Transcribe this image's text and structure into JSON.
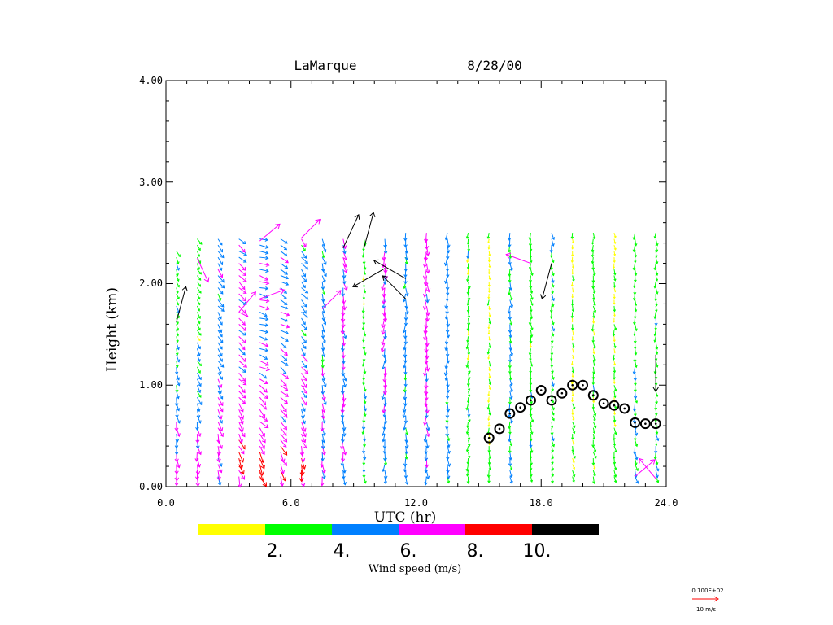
{
  "chart_data": {
    "type": "wind-profiler-vector",
    "title_station": "LaMarque",
    "title_date": "8/28/00",
    "xlabel": "UTC (hr)",
    "ylabel": "Height (km)",
    "xlim": [
      0,
      24
    ],
    "ylim": [
      0,
      4
    ],
    "xticks": [
      0,
      6,
      12,
      18,
      24
    ],
    "xtick_labels": [
      "0.0",
      "6.0",
      "12.0",
      "18.0",
      "24.0"
    ],
    "yticks": [
      0,
      1,
      2,
      3,
      4
    ],
    "ytick_labels": [
      "0.00",
      "1.00",
      "2.00",
      "3.00",
      "4.00"
    ],
    "colorbar": {
      "label": "Wind speed (m/s)",
      "colors": [
        "#ffff00",
        "#00ff00",
        "#0080ff",
        "#ff00ff",
        "#ff0000",
        "#000000"
      ],
      "bounds": [
        0,
        2,
        4,
        6,
        8,
        10,
        12
      ],
      "tick_labels": [
        "2.",
        "4.",
        "6.",
        "8.",
        "10."
      ]
    },
    "reference_vector": {
      "value_label": "0.100E+02",
      "unit_label": "10 m/s",
      "color": "#ff0000"
    },
    "profile_hours": [
      0.5,
      1.5,
      2.5,
      3.5,
      4.5,
      5.5,
      6.5,
      7.5,
      8.5,
      9.5,
      10.5,
      11.5,
      12.5,
      13.5,
      14.5,
      15.5,
      16.5,
      17.5,
      18.5,
      19.5,
      20.5,
      21.5,
      22.5,
      23.5
    ],
    "profile_top_km": [
      2.35,
      2.45,
      2.45,
      2.45,
      2.45,
      2.45,
      2.45,
      2.45,
      2.45,
      2.45,
      2.45,
      2.5,
      2.5,
      2.5,
      2.5,
      2.5,
      2.5,
      2.5,
      2.5,
      2.5,
      2.5,
      2.5,
      2.5,
      2.5
    ],
    "level_spacing_km": 0.06,
    "profiles": [
      {
        "h": 0.5,
        "low_dir": 175,
        "up_dir": 160,
        "low_speed": 6.8,
        "up_speed": 3.5
      },
      {
        "h": 1.5,
        "low_dir": 178,
        "up_dir": 150,
        "low_speed": 7.0,
        "up_speed": 3.0
      },
      {
        "h": 2.5,
        "low_dir": 172,
        "up_dir": 145,
        "low_speed": 7.2,
        "up_speed": 5.0
      },
      {
        "h": 3.5,
        "low_dir": 165,
        "up_dir": 130,
        "low_speed": 7.5,
        "up_speed": 6.5
      },
      {
        "h": 4.5,
        "low_dir": 160,
        "up_dir": 110,
        "low_speed": 8.2,
        "up_speed": 6.0
      },
      {
        "h": 5.5,
        "low_dir": 160,
        "up_dir": 120,
        "low_speed": 7.8,
        "up_speed": 5.5
      },
      {
        "h": 6.5,
        "low_dir": 170,
        "up_dir": 140,
        "low_speed": 8.5,
        "up_speed": 5.0
      },
      {
        "h": 7.5,
        "low_dir": 175,
        "up_dir": 160,
        "low_speed": 6.8,
        "up_speed": 4.5
      },
      {
        "h": 8.5,
        "low_dir": 178,
        "up_dir": 170,
        "low_speed": 5.5,
        "up_speed": 6.5
      },
      {
        "h": 9.5,
        "low_dir": 180,
        "up_dir": 180,
        "low_speed": 4.5,
        "up_speed": 3.0
      },
      {
        "h": 10.5,
        "low_dir": 182,
        "up_dir": 185,
        "low_speed": 4.5,
        "up_speed": 6.5
      },
      {
        "h": 11.5,
        "low_dir": 180,
        "up_dir": 180,
        "low_speed": 4.8,
        "up_speed": 4.8
      },
      {
        "h": 12.5,
        "low_dir": 180,
        "up_dir": 180,
        "low_speed": 5.0,
        "up_speed": 7.0
      },
      {
        "h": 13.5,
        "low_dir": 178,
        "up_dir": 180,
        "low_speed": 4.5,
        "up_speed": 5.0
      },
      {
        "h": 14.5,
        "low_dir": 178,
        "up_dir": 180,
        "low_speed": 3.0,
        "up_speed": 3.0
      },
      {
        "h": 15.5,
        "low_dir": 175,
        "up_dir": 180,
        "low_speed": 2.8,
        "up_speed": 1.5
      },
      {
        "h": 16.5,
        "low_dir": 170,
        "up_dir": 175,
        "low_speed": 3.5,
        "up_speed": 4.5
      },
      {
        "h": 17.5,
        "low_dir": 168,
        "up_dir": 175,
        "low_speed": 3.5,
        "up_speed": 3.0
      },
      {
        "h": 18.5,
        "low_dir": 165,
        "up_dir": 170,
        "low_speed": 3.0,
        "up_speed": 3.5
      },
      {
        "h": 19.5,
        "low_dir": 165,
        "up_dir": 175,
        "low_speed": 3.0,
        "up_speed": 1.5
      },
      {
        "h": 20.5,
        "low_dir": 165,
        "up_dir": 175,
        "low_speed": 3.0,
        "up_speed": 3.0
      },
      {
        "h": 21.5,
        "low_dir": 165,
        "up_dir": 175,
        "low_speed": 3.5,
        "up_speed": 1.8
      },
      {
        "h": 22.5,
        "low_dir": 168,
        "up_dir": 178,
        "low_speed": 4.5,
        "up_speed": 3.0
      },
      {
        "h": 23.5,
        "low_dir": 170,
        "up_dir": 178,
        "low_speed": 3.5,
        "up_speed": 3.0
      }
    ],
    "special_vectors": [
      {
        "h": 0.5,
        "km": 1.62,
        "dir": 15,
        "speed": 12
      },
      {
        "h": 1.5,
        "km": 2.25,
        "dir": 155,
        "speed": 7
      },
      {
        "h": 3.5,
        "km": 1.72,
        "dir": 40,
        "speed": 7
      },
      {
        "h": 4.5,
        "km": 2.42,
        "dir": 50,
        "speed": 7
      },
      {
        "h": 4.5,
        "km": 1.85,
        "dir": 70,
        "speed": 7
      },
      {
        "h": 6.5,
        "km": 2.45,
        "dir": 45,
        "speed": 7
      },
      {
        "h": 7.5,
        "km": 1.75,
        "dir": 45,
        "speed": 7
      },
      {
        "h": 8.5,
        "km": 2.35,
        "dir": 25,
        "speed": 12
      },
      {
        "h": 9.5,
        "km": 2.35,
        "dir": 15,
        "speed": 12
      },
      {
        "h": 10.5,
        "km": 2.15,
        "dir": 240,
        "speed": 12
      },
      {
        "h": 11.5,
        "km": 2.05,
        "dir": 300,
        "speed": 12
      },
      {
        "h": 11.5,
        "km": 1.85,
        "dir": 315,
        "speed": 10
      },
      {
        "h": 17.5,
        "km": 2.2,
        "dir": 290,
        "speed": 7
      },
      {
        "h": 18.5,
        "km": 2.2,
        "dir": 195,
        "speed": 12
      },
      {
        "h": 22.5,
        "km": 0.1,
        "dir": 50,
        "speed": 7
      },
      {
        "h": 23.5,
        "km": 0.08,
        "dir": 320,
        "speed": 7
      },
      {
        "h": 23.5,
        "km": 1.3,
        "dir": 180,
        "speed": 12
      }
    ],
    "boundary_layer_height": {
      "x": [
        15.5,
        16.0,
        16.5,
        17.0,
        17.5,
        18.0,
        18.5,
        19.0,
        19.5,
        20.0,
        20.5,
        21.0,
        21.5,
        22.0,
        22.5,
        23.0,
        23.5
      ],
      "y": [
        0.48,
        0.57,
        0.72,
        0.78,
        0.85,
        0.95,
        0.85,
        0.92,
        1.0,
        1.0,
        0.9,
        0.82,
        0.8,
        0.77,
        0.63,
        0.62,
        0.62
      ]
    }
  }
}
